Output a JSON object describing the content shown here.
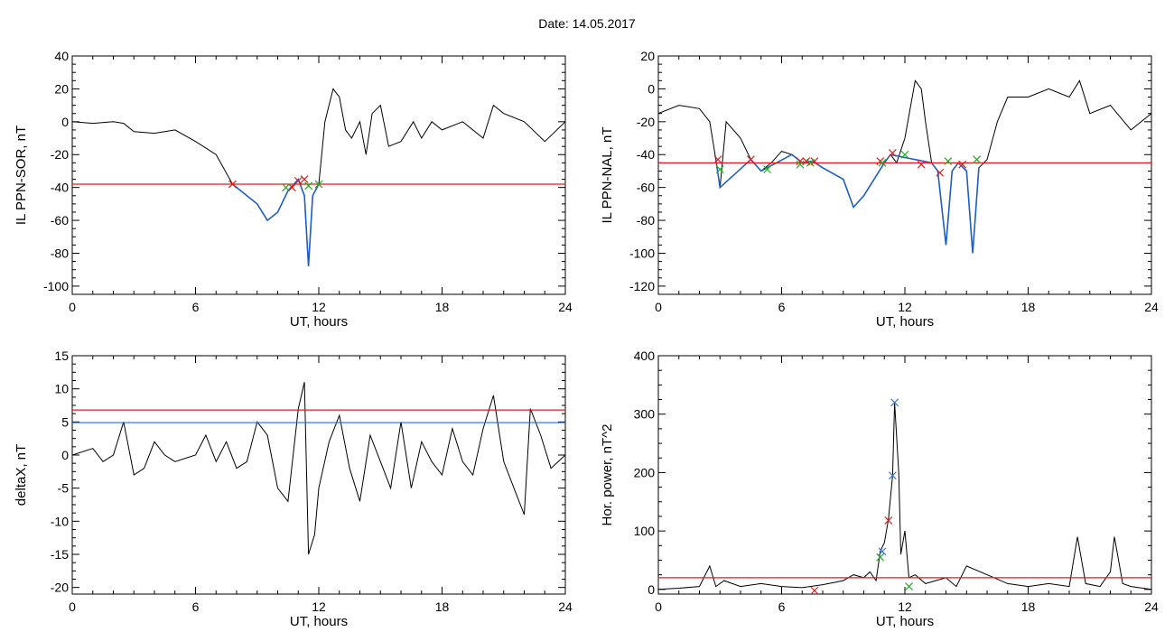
{
  "header": {
    "date_label": "Date:",
    "date_value": "14.05.2017"
  },
  "colors": {
    "data": "#000000",
    "highlight": "#1f5fbf",
    "threshold_red": "#e01e1e",
    "threshold_blue": "#1e6fe0",
    "marker_red": "#e01e1e",
    "marker_green": "#22aa22",
    "marker_blue": "#3a78d8"
  },
  "chart_data": [
    {
      "id": "sor",
      "type": "line",
      "xlabel": "UT, hours",
      "ylabel": "IL PPN-SOR, nT",
      "xlim": [
        0,
        24
      ],
      "ylim": [
        -105,
        40
      ],
      "xticks": [
        0,
        6,
        12,
        18,
        24
      ],
      "yticks": [
        -100,
        -80,
        -60,
        -40,
        -20,
        0,
        20,
        40
      ],
      "series": [
        {
          "values": [
            [
              0,
              0
            ],
            [
              1,
              -1
            ],
            [
              2,
              0
            ],
            [
              2.5,
              -1
            ],
            [
              3,
              -6
            ],
            [
              4,
              -7
            ],
            [
              5,
              -5
            ],
            [
              6,
              -12
            ],
            [
              7,
              -20
            ],
            [
              7.8,
              -38
            ],
            [
              8.5,
              -45
            ],
            [
              9,
              -50
            ],
            [
              9.5,
              -60
            ],
            [
              10,
              -55
            ],
            [
              10.5,
              -42
            ],
            [
              11,
              -35
            ],
            [
              11.3,
              -45
            ],
            [
              11.5,
              -88
            ],
            [
              11.7,
              -45
            ],
            [
              12,
              -38
            ],
            [
              12.3,
              0
            ],
            [
              12.7,
              20
            ],
            [
              13,
              15
            ],
            [
              13.3,
              -5
            ],
            [
              13.6,
              -10
            ],
            [
              14,
              0
            ],
            [
              14.3,
              -20
            ],
            [
              14.6,
              5
            ],
            [
              15,
              10
            ],
            [
              15.4,
              -15
            ],
            [
              16,
              -12
            ],
            [
              16.6,
              0
            ],
            [
              17,
              -10
            ],
            [
              17.5,
              0
            ],
            [
              18,
              -5
            ],
            [
              19,
              0
            ],
            [
              20,
              -10
            ],
            [
              20.5,
              10
            ],
            [
              21,
              5
            ],
            [
              22,
              0
            ],
            [
              23,
              -12
            ],
            [
              24,
              0
            ]
          ]
        }
      ],
      "highlight": [
        [
          7.8,
          -38
        ],
        [
          8.5,
          -45
        ],
        [
          9,
          -50
        ],
        [
          9.5,
          -60
        ],
        [
          10,
          -55
        ],
        [
          10.5,
          -42
        ],
        [
          11,
          -35
        ],
        [
          11.3,
          -45
        ],
        [
          11.5,
          -88
        ],
        [
          11.7,
          -45
        ],
        [
          12,
          -38
        ]
      ],
      "thresholds": [
        {
          "y": -38,
          "color": "red"
        }
      ],
      "markers": [
        {
          "x": 7.8,
          "y": -38,
          "color": "red"
        },
        {
          "x": 10.7,
          "y": -40,
          "color": "red"
        },
        {
          "x": 11.0,
          "y": -36,
          "color": "red"
        },
        {
          "x": 11.3,
          "y": -35,
          "color": "red"
        },
        {
          "x": 10.4,
          "y": -40,
          "color": "green"
        },
        {
          "x": 11.5,
          "y": -39,
          "color": "green"
        },
        {
          "x": 12.0,
          "y": -38,
          "color": "green"
        }
      ]
    },
    {
      "id": "nal",
      "type": "line",
      "xlabel": "UT, hours",
      "ylabel": "IL PPN-NAL, nT",
      "xlim": [
        0,
        24
      ],
      "ylim": [
        -125,
        20
      ],
      "xticks": [
        0,
        6,
        12,
        18,
        24
      ],
      "yticks": [
        -120,
        -100,
        -80,
        -60,
        -40,
        -20,
        0,
        20
      ],
      "series": [
        {
          "values": [
            [
              0,
              -15
            ],
            [
              1,
              -10
            ],
            [
              2,
              -12
            ],
            [
              2.5,
              -20
            ],
            [
              2.8,
              -43
            ],
            [
              3,
              -60
            ],
            [
              3.3,
              -20
            ],
            [
              4,
              -30
            ],
            [
              4.5,
              -43
            ],
            [
              5,
              -50
            ],
            [
              5.5,
              -45
            ],
            [
              6,
              -38
            ],
            [
              6.5,
              -40
            ],
            [
              7,
              -45
            ],
            [
              7.5,
              -44
            ],
            [
              8,
              -48
            ],
            [
              9,
              -55
            ],
            [
              9.5,
              -72
            ],
            [
              10,
              -65
            ],
            [
              10.5,
              -55
            ],
            [
              11,
              -45
            ],
            [
              11.3,
              -40
            ],
            [
              11.6,
              -45
            ],
            [
              12,
              -30
            ],
            [
              12.5,
              5
            ],
            [
              12.8,
              0
            ],
            [
              13,
              -20
            ],
            [
              13.3,
              -45
            ],
            [
              13.6,
              -50
            ],
            [
              14,
              -95
            ],
            [
              14.3,
              -50
            ],
            [
              14.6,
              -45
            ],
            [
              15,
              -50
            ],
            [
              15.3,
              -100
            ],
            [
              15.6,
              -48
            ],
            [
              16,
              -43
            ],
            [
              16.5,
              -20
            ],
            [
              17,
              -5
            ],
            [
              18,
              -5
            ],
            [
              19,
              0
            ],
            [
              20,
              -5
            ],
            [
              20.5,
              5
            ],
            [
              21,
              -15
            ],
            [
              22,
              -10
            ],
            [
              23,
              -25
            ],
            [
              24,
              -15
            ]
          ]
        }
      ],
      "highlight": [
        [
          2.8,
          -43
        ],
        [
          3,
          -60
        ],
        [
          4.5,
          -43
        ],
        [
          5,
          -50
        ],
        [
          6.5,
          -40
        ],
        [
          7,
          -45
        ],
        [
          7.5,
          -44
        ],
        [
          8,
          -48
        ],
        [
          9,
          -55
        ],
        [
          9.5,
          -72
        ],
        [
          10,
          -65
        ],
        [
          10.5,
          -55
        ],
        [
          11,
          -45
        ],
        [
          11.3,
          -40
        ],
        [
          13.3,
          -45
        ],
        [
          13.6,
          -50
        ],
        [
          14,
          -95
        ],
        [
          14.3,
          -50
        ],
        [
          14.6,
          -45
        ],
        [
          15,
          -50
        ],
        [
          15.3,
          -100
        ],
        [
          15.6,
          -48
        ]
      ],
      "thresholds": [
        {
          "y": -45,
          "color": "red"
        }
      ],
      "markers": [
        {
          "x": 2.9,
          "y": -43,
          "color": "red"
        },
        {
          "x": 4.5,
          "y": -43,
          "color": "red"
        },
        {
          "x": 6.9,
          "y": -44,
          "color": "red"
        },
        {
          "x": 7.2,
          "y": -44,
          "color": "red"
        },
        {
          "x": 7.6,
          "y": -44,
          "color": "red"
        },
        {
          "x": 10.8,
          "y": -44,
          "color": "red"
        },
        {
          "x": 11.4,
          "y": -39,
          "color": "red"
        },
        {
          "x": 12.8,
          "y": -46,
          "color": "red"
        },
        {
          "x": 13.7,
          "y": -51,
          "color": "red"
        },
        {
          "x": 14.8,
          "y": -46,
          "color": "red"
        },
        {
          "x": 3.0,
          "y": -49,
          "color": "green"
        },
        {
          "x": 5.3,
          "y": -49,
          "color": "green"
        },
        {
          "x": 6.9,
          "y": -46,
          "color": "green"
        },
        {
          "x": 7.4,
          "y": -45,
          "color": "green"
        },
        {
          "x": 10.9,
          "y": -45,
          "color": "green"
        },
        {
          "x": 12.0,
          "y": -40,
          "color": "green"
        },
        {
          "x": 14.1,
          "y": -44,
          "color": "green"
        },
        {
          "x": 15.5,
          "y": -43,
          "color": "green"
        }
      ]
    },
    {
      "id": "deltax",
      "type": "line",
      "xlabel": "UT, hours",
      "ylabel": "deltaX, nT",
      "xlim": [
        0,
        24
      ],
      "ylim": [
        -21,
        15
      ],
      "xticks": [
        0,
        6,
        12,
        18,
        24
      ],
      "yticks": [
        -20,
        -15,
        -10,
        -5,
        0,
        5,
        10,
        15
      ],
      "series": [
        {
          "values": [
            [
              0,
              0
            ],
            [
              1,
              1
            ],
            [
              1.5,
              -1
            ],
            [
              2,
              0
            ],
            [
              2.5,
              5
            ],
            [
              3,
              -3
            ],
            [
              3.5,
              -2
            ],
            [
              4,
              2
            ],
            [
              4.5,
              0
            ],
            [
              5,
              -1
            ],
            [
              6,
              0
            ],
            [
              6.5,
              3
            ],
            [
              7,
              -1
            ],
            [
              7.5,
              2
            ],
            [
              8,
              -2
            ],
            [
              8.5,
              -1
            ],
            [
              9,
              5
            ],
            [
              9.5,
              3
            ],
            [
              10,
              -5
            ],
            [
              10.5,
              -7
            ],
            [
              11,
              7
            ],
            [
              11.3,
              11
            ],
            [
              11.5,
              -15
            ],
            [
              11.8,
              -12
            ],
            [
              12,
              -5
            ],
            [
              12.5,
              2
            ],
            [
              13,
              6
            ],
            [
              13.5,
              -2
            ],
            [
              14,
              -7
            ],
            [
              14.5,
              3
            ],
            [
              15,
              -1
            ],
            [
              15.5,
              -5
            ],
            [
              16,
              5
            ],
            [
              16.5,
              -5
            ],
            [
              17,
              2
            ],
            [
              17.5,
              -1
            ],
            [
              18,
              -3
            ],
            [
              18.5,
              4
            ],
            [
              19,
              -1
            ],
            [
              19.5,
              -3
            ],
            [
              20,
              4
            ],
            [
              20.5,
              9
            ],
            [
              21,
              -1
            ],
            [
              21.5,
              -5
            ],
            [
              22,
              -9
            ],
            [
              22.3,
              7
            ],
            [
              22.8,
              3
            ],
            [
              23.3,
              -2
            ],
            [
              24,
              0
            ]
          ]
        }
      ],
      "highlight": [],
      "thresholds": [
        {
          "y": 6.8,
          "color": "red"
        },
        {
          "y": 4.9,
          "color": "blue"
        }
      ],
      "markers": []
    },
    {
      "id": "power",
      "type": "line",
      "xlabel": "UT, hours",
      "ylabel": "Hor. power, nT^2",
      "xlim": [
        0,
        24
      ],
      "ylim": [
        -8,
        400
      ],
      "xticks": [
        0,
        6,
        12,
        18,
        24
      ],
      "yticks": [
        0,
        100,
        200,
        300,
        400
      ],
      "series": [
        {
          "values": [
            [
              0,
              0
            ],
            [
              1,
              2
            ],
            [
              2,
              5
            ],
            [
              2.5,
              40
            ],
            [
              2.8,
              5
            ],
            [
              3.2,
              15
            ],
            [
              4,
              5
            ],
            [
              5,
              10
            ],
            [
              6,
              5
            ],
            [
              7,
              3
            ],
            [
              8,
              8
            ],
            [
              9,
              15
            ],
            [
              9.5,
              25
            ],
            [
              10,
              20
            ],
            [
              10.3,
              30
            ],
            [
              10.6,
              15
            ],
            [
              10.8,
              65
            ],
            [
              11,
              80
            ],
            [
              11.2,
              120
            ],
            [
              11.4,
              195
            ],
            [
              11.5,
              320
            ],
            [
              11.7,
              200
            ],
            [
              11.8,
              60
            ],
            [
              12,
              100
            ],
            [
              12.2,
              20
            ],
            [
              12.5,
              25
            ],
            [
              13,
              10
            ],
            [
              14,
              20
            ],
            [
              14.5,
              5
            ],
            [
              15,
              40
            ],
            [
              16,
              25
            ],
            [
              17,
              10
            ],
            [
              18,
              5
            ],
            [
              19,
              10
            ],
            [
              20,
              5
            ],
            [
              20.4,
              90
            ],
            [
              20.8,
              10
            ],
            [
              21.5,
              5
            ],
            [
              22,
              30
            ],
            [
              22.2,
              90
            ],
            [
              22.6,
              10
            ],
            [
              23,
              5
            ],
            [
              24,
              0
            ]
          ]
        }
      ],
      "highlight": [],
      "thresholds": [
        {
          "y": 20,
          "color": "red"
        }
      ],
      "markers": [
        {
          "x": 10.9,
          "y": 65,
          "color": "blue"
        },
        {
          "x": 11.4,
          "y": 195,
          "color": "blue"
        },
        {
          "x": 11.5,
          "y": 320,
          "color": "blue"
        },
        {
          "x": 11.2,
          "y": 118,
          "color": "red"
        },
        {
          "x": 7.6,
          "y": -2,
          "color": "red"
        },
        {
          "x": 10.8,
          "y": 55,
          "color": "green"
        },
        {
          "x": 12.2,
          "y": 5,
          "color": "green"
        }
      ]
    }
  ]
}
